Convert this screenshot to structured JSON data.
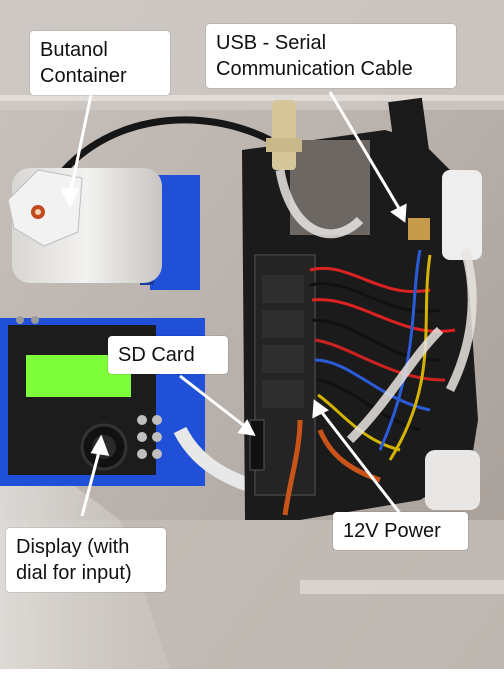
{
  "photo": {
    "subject": "Opened instrument enclosure with labeled internal components"
  },
  "callouts": {
    "butanol": {
      "line1": "Butanol",
      "line2": "Container"
    },
    "usb": {
      "line1": "USB - Serial",
      "line2": "Communication Cable"
    },
    "sdcard": {
      "line1": "SD Card"
    },
    "power": {
      "line1": "12V Power"
    },
    "display": {
      "line1": "Display (with",
      "line2": "dial for input)"
    }
  },
  "colors": {
    "callout_bg": "#ffffff",
    "arrow": "#ffffff",
    "blue_housing": "#1f4fd1",
    "lcd_green": "#7dff3a",
    "enclosure_black": "#1a1a1a"
  }
}
